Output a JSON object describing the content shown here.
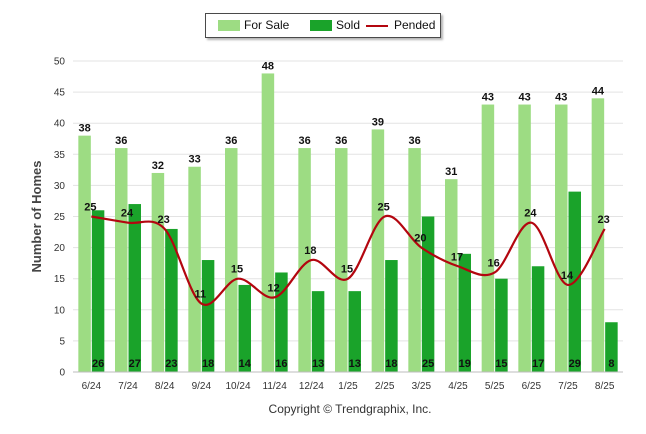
{
  "chart_data": {
    "type": "bar",
    "ylabel": "Number of Homes",
    "xlabel": "",
    "ylim": [
      0,
      50
    ],
    "yticks": [
      0,
      5,
      10,
      15,
      20,
      25,
      30,
      35,
      40,
      45,
      50
    ],
    "grid": true,
    "legend_position": "top-center",
    "categories": [
      "6/24",
      "7/24",
      "8/24",
      "9/24",
      "10/24",
      "11/24",
      "12/24",
      "1/25",
      "2/25",
      "3/25",
      "4/25",
      "5/25",
      "6/25",
      "7/25",
      "8/25"
    ],
    "series": [
      {
        "name": "For Sale",
        "type": "bar",
        "color": "#9ddc83",
        "values": [
          38,
          36,
          32,
          33,
          36,
          48,
          36,
          36,
          39,
          36,
          31,
          43,
          43,
          43,
          44
        ]
      },
      {
        "name": "Sold",
        "type": "bar",
        "color": "#1aa32a",
        "values": [
          26,
          27,
          23,
          18,
          14,
          16,
          13,
          13,
          18,
          25,
          19,
          15,
          17,
          29,
          8
        ]
      },
      {
        "name": "Pended",
        "type": "line",
        "color": "#b3060f",
        "values": [
          25,
          24,
          23,
          11,
          15,
          12,
          18,
          15,
          25,
          20,
          17,
          16,
          24,
          14,
          23
        ]
      }
    ]
  },
  "footer": {
    "copyright": "Copyright © Trendgraphix, Inc."
  }
}
